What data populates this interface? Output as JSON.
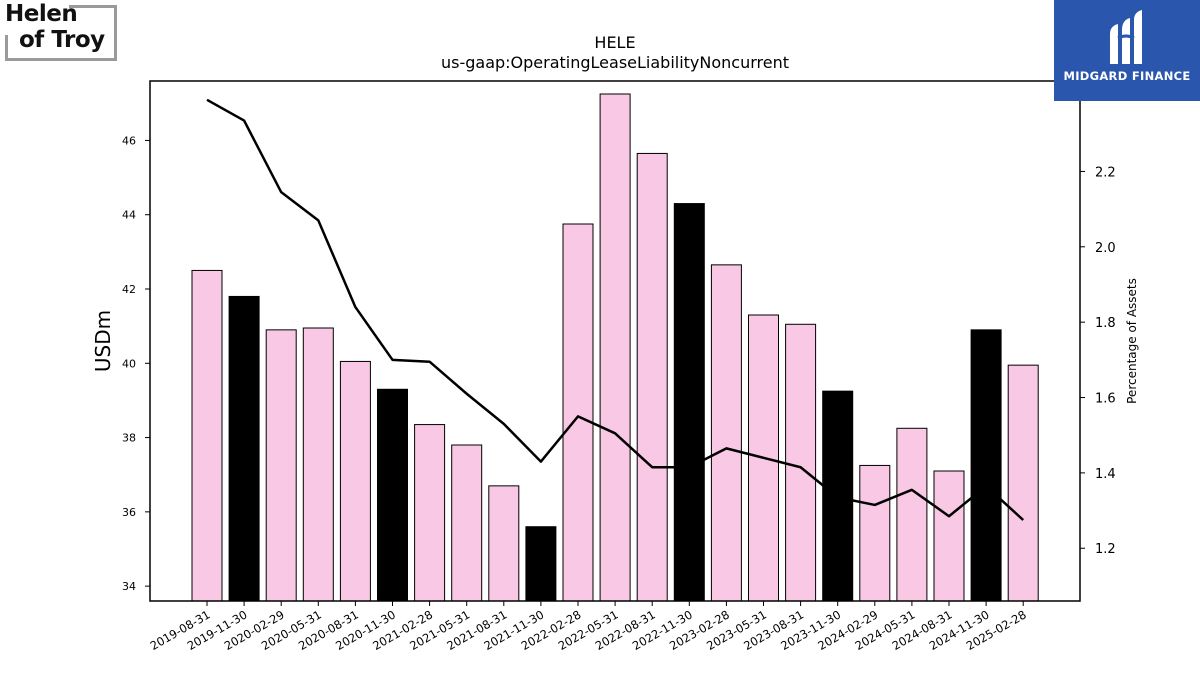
{
  "logos": {
    "left_text": [
      "Helen",
      "of Troy"
    ],
    "right_brand": "MIDGARD FINANCE"
  },
  "colors": {
    "bar_default": "#f9c8e4",
    "bar_highlight": "#000000",
    "line": "#000000",
    "logo_right_bg": "#2b56ad"
  },
  "chart_data": {
    "type": "bar",
    "title": "HELE",
    "subtitle": "us-gaap:OperatingLeaseLiabilityNoncurrent",
    "ylabel": "USDm",
    "y2label": "Percentage of Assets",
    "ylim": [
      33.6,
      47.6
    ],
    "y2lim": [
      1.06,
      2.44
    ],
    "yticks": [
      34,
      36,
      38,
      40,
      42,
      44,
      46
    ],
    "y2ticks": [
      1.2,
      1.4,
      1.6,
      1.8,
      2.0,
      2.2,
      2.4
    ],
    "y2ticklabels": [
      "1.2",
      "1.4",
      "1.6",
      "1.8",
      "2.0",
      "2.2",
      "2.4"
    ],
    "categories": [
      "2019-08-31",
      "2019-11-30",
      "2020-02-29",
      "2020-05-31",
      "2020-08-31",
      "2020-11-30",
      "2021-02-28",
      "2021-05-31",
      "2021-08-31",
      "2021-11-30",
      "2022-02-28",
      "2022-05-31",
      "2022-08-31",
      "2022-11-30",
      "2023-02-28",
      "2023-05-31",
      "2023-08-31",
      "2023-11-30",
      "2024-02-29",
      "2024-05-31",
      "2024-08-31",
      "2024-11-30",
      "2025-02-28"
    ],
    "highlight": [
      false,
      true,
      false,
      false,
      false,
      true,
      false,
      false,
      false,
      true,
      false,
      false,
      false,
      true,
      false,
      false,
      false,
      true,
      false,
      false,
      false,
      true,
      false
    ],
    "series": [
      {
        "name": "",
        "kind": "bar",
        "axis": "left",
        "values": [
          42.5,
          41.8,
          40.9,
          40.95,
          40.05,
          39.3,
          38.35,
          37.8,
          36.7,
          35.6,
          43.75,
          47.25,
          45.65,
          44.3,
          42.65,
          41.3,
          41.05,
          39.25,
          37.25,
          38.25,
          37.1,
          40.9,
          39.95
        ]
      },
      {
        "name": "",
        "kind": "line",
        "axis": "right",
        "values": [
          2.39,
          2.335,
          2.145,
          2.07,
          1.84,
          1.7,
          1.695,
          1.61,
          1.53,
          1.43,
          1.55,
          1.505,
          1.415,
          1.415,
          1.465,
          1.44,
          1.415,
          1.335,
          1.315,
          1.355,
          1.285,
          1.365,
          1.275
        ]
      }
    ]
  }
}
